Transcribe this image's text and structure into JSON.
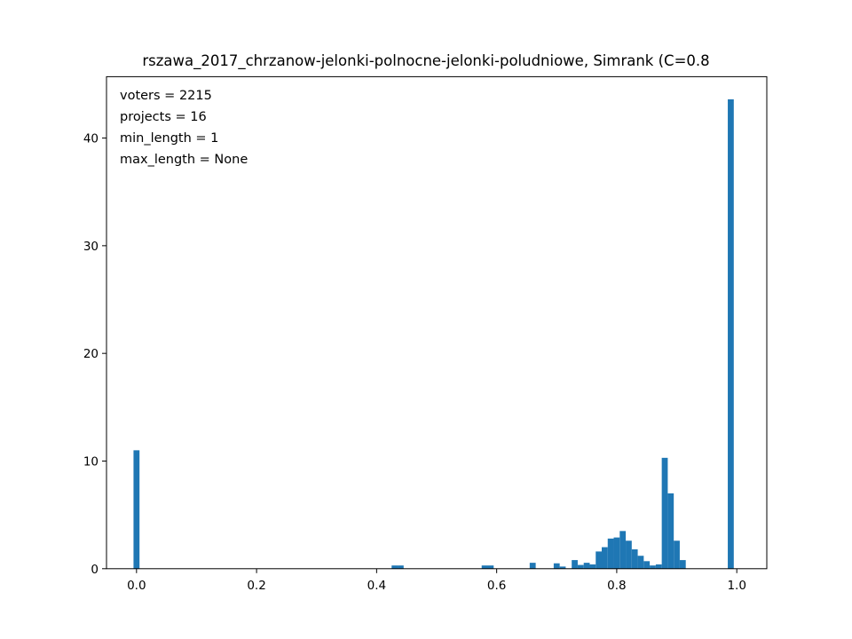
{
  "chart_data": {
    "type": "bar",
    "title": "rszawa_2017_chrzanow-jelonki-polnocne-jelonki-poludniowe, Simrank (C=0.8",
    "annotations": [
      "voters = 2215",
      "projects = 16",
      "min_length = 1",
      "max_length = None"
    ],
    "xlim": [
      -0.05,
      1.05
    ],
    "ylim": [
      0,
      45.7
    ],
    "x_ticks": [
      0.0,
      0.2,
      0.4,
      0.6,
      0.8,
      1.0
    ],
    "x_tick_labels": [
      "0.0",
      "0.2",
      "0.4",
      "0.6",
      "0.8",
      "1.0"
    ],
    "y_ticks": [
      0,
      10,
      20,
      30,
      40
    ],
    "y_tick_labels": [
      "0",
      "10",
      "20",
      "30",
      "40"
    ],
    "bin_width": 0.01,
    "bar_color": "#1f77b4",
    "bars": [
      {
        "x": 0.0,
        "y": 11.0
      },
      {
        "x": 0.43,
        "y": 0.3
      },
      {
        "x": 0.44,
        "y": 0.3
      },
      {
        "x": 0.58,
        "y": 0.3
      },
      {
        "x": 0.59,
        "y": 0.3
      },
      {
        "x": 0.66,
        "y": 0.55
      },
      {
        "x": 0.7,
        "y": 0.5
      },
      {
        "x": 0.71,
        "y": 0.2
      },
      {
        "x": 0.73,
        "y": 0.8
      },
      {
        "x": 0.74,
        "y": 0.35
      },
      {
        "x": 0.75,
        "y": 0.55
      },
      {
        "x": 0.76,
        "y": 0.4
      },
      {
        "x": 0.77,
        "y": 1.6
      },
      {
        "x": 0.78,
        "y": 2.0
      },
      {
        "x": 0.79,
        "y": 2.8
      },
      {
        "x": 0.8,
        "y": 2.9
      },
      {
        "x": 0.81,
        "y": 3.5
      },
      {
        "x": 0.82,
        "y": 2.6
      },
      {
        "x": 0.83,
        "y": 1.8
      },
      {
        "x": 0.84,
        "y": 1.2
      },
      {
        "x": 0.85,
        "y": 0.7
      },
      {
        "x": 0.86,
        "y": 0.3
      },
      {
        "x": 0.87,
        "y": 0.4
      },
      {
        "x": 0.88,
        "y": 10.3
      },
      {
        "x": 0.89,
        "y": 7.0
      },
      {
        "x": 0.9,
        "y": 2.6
      },
      {
        "x": 0.91,
        "y": 0.8
      },
      {
        "x": 0.99,
        "y": 43.6
      }
    ]
  }
}
